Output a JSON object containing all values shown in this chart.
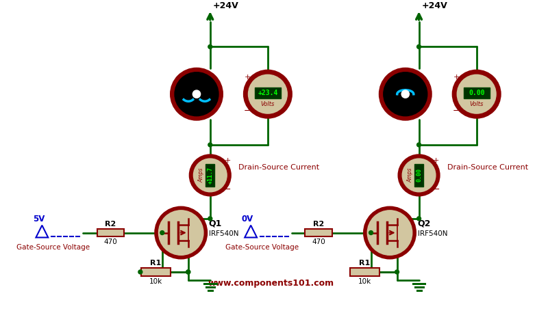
{
  "bg_color": "#ffffff",
  "dark_green": "#006400",
  "dark_red": "#8B0000",
  "light_beige": "#D2C6A0",
  "cyan": "#00BFFF",
  "bright_green": "#00FF00",
  "dark_green_display": "#003300",
  "blue_label": "#0000CC",
  "website": "www.components101.com",
  "circuit1": {
    "voltage_reading": "+23.4",
    "current_reading": "+11.7",
    "gate_voltage": "5V",
    "resistor_gate_val": "470",
    "resistor_source_val": "10k",
    "transistor_label": "Q1",
    "transistor_model": "IRF540N"
  },
  "circuit2": {
    "voltage_reading": "0.00",
    "current_reading": "0.00",
    "gate_voltage": "0V",
    "resistor_gate_val": "470",
    "resistor_source_val": "10k",
    "transistor_label": "Q2",
    "transistor_model": "IRF540N"
  }
}
